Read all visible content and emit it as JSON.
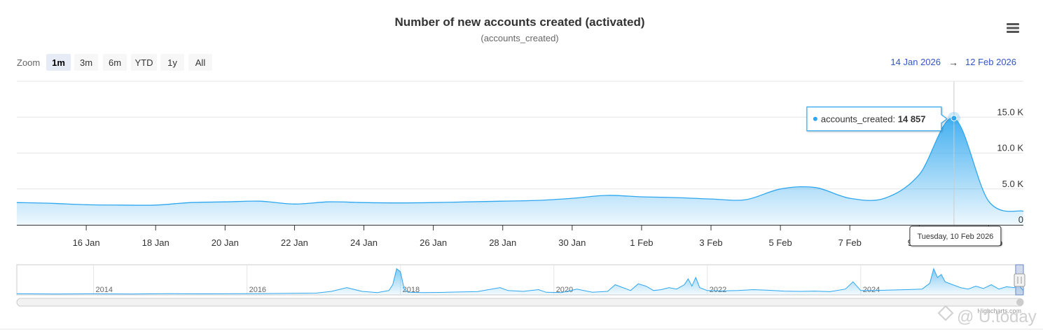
{
  "chart_data": {
    "type": "area",
    "title": "Number of new accounts created (activated)",
    "subtitle": "(accounts_created)",
    "series": [
      {
        "name": "accounts_created",
        "x": [
          "2026-01-14",
          "2026-01-15",
          "2026-01-16",
          "2026-01-17",
          "2026-01-18",
          "2026-01-19",
          "2026-01-20",
          "2026-01-21",
          "2026-01-22",
          "2026-01-23",
          "2026-01-24",
          "2026-01-25",
          "2026-01-26",
          "2026-01-27",
          "2026-01-28",
          "2026-01-29",
          "2026-01-30",
          "2026-01-31",
          "2026-02-01",
          "2026-02-02",
          "2026-02-03",
          "2026-02-04",
          "2026-02-05",
          "2026-02-06",
          "2026-02-07",
          "2026-02-08",
          "2026-02-09",
          "2026-02-10",
          "2026-02-11",
          "2026-02-12"
        ],
        "values": [
          3100,
          3000,
          2800,
          2750,
          2750,
          3100,
          3200,
          3300,
          2900,
          3200,
          3100,
          3050,
          3100,
          3200,
          3300,
          3400,
          3700,
          4100,
          3900,
          3800,
          3600,
          3500,
          5000,
          5200,
          3700,
          3700,
          7000,
          14857,
          3300,
          1900
        ]
      }
    ],
    "ylim": [
      0,
      20000
    ],
    "yticks": [
      "0",
      "5.0 K",
      "10.0 K",
      "15.0 K"
    ],
    "ytick_values": [
      0,
      5000,
      10000,
      15000
    ],
    "xticks": [
      "16 Jan",
      "18 Jan",
      "20 Jan",
      "22 Jan",
      "24 Jan",
      "26 Jan",
      "28 Jan",
      "30 Jan",
      "1 Feb",
      "3 Feb",
      "5 Feb",
      "7 Feb",
      "9 Feb",
      "11 Feb"
    ],
    "xtick_dates": [
      "2026-01-16",
      "2026-01-18",
      "2026-01-20",
      "2026-01-22",
      "2026-01-24",
      "2026-01-26",
      "2026-01-28",
      "2026-01-30",
      "2026-02-01",
      "2026-02-03",
      "2026-02-05",
      "2026-02-07",
      "2026-02-09",
      "2026-02-11"
    ],
    "xrange": [
      "2026-01-14",
      "2026-02-12"
    ],
    "grid": true,
    "legend": "none",
    "color": "#2fa7ef",
    "tooltip": {
      "label": "accounts_created:",
      "value": "14 857",
      "date_label": "Tuesday, 10 Feb 2026",
      "date": "2026-02-10",
      "y": 14857
    },
    "navigator": {
      "years": [
        "2014",
        "2016",
        "2018",
        "2020",
        "2022",
        "2024"
      ],
      "year_starts": [
        2014,
        2016,
        2018,
        2020,
        2022,
        2024
      ],
      "range": [
        2013.0,
        2026.12
      ],
      "x": [
        2013.0,
        2013.5,
        2014.0,
        2014.5,
        2015.0,
        2015.5,
        2016.0,
        2016.5,
        2016.9,
        2017.1,
        2017.3,
        2017.5,
        2017.7,
        2017.85,
        2017.9,
        2017.95,
        2018.0,
        2018.05,
        2018.1,
        2018.3,
        2018.6,
        2018.8,
        2019.0,
        2019.3,
        2019.4,
        2019.6,
        2019.8,
        2019.9,
        2020.1,
        2020.3,
        2020.5,
        2020.7,
        2020.8,
        2020.9,
        2021.0,
        2021.1,
        2021.2,
        2021.3,
        2021.4,
        2021.5,
        2021.6,
        2021.7,
        2021.75,
        2021.8,
        2021.85,
        2021.9,
        2022.0,
        2022.2,
        2022.4,
        2022.6,
        2022.8,
        2023.0,
        2023.2,
        2023.4,
        2023.6,
        2023.8,
        2023.9,
        2024.0,
        2024.3,
        2024.6,
        2024.8,
        2024.9,
        2024.95,
        2025.0,
        2025.05,
        2025.1,
        2025.2,
        2025.3,
        2025.4,
        2025.5,
        2025.6,
        2025.7,
        2025.8,
        2025.9,
        2026.0,
        2026.05,
        2026.1,
        2026.12
      ],
      "values": [
        400,
        300,
        350,
        300,
        400,
        350,
        400,
        500,
        600,
        1200,
        2500,
        1200,
        800,
        1500,
        3500,
        9000,
        8000,
        2000,
        900,
        800,
        900,
        1000,
        1100,
        2500,
        1500,
        1200,
        1800,
        900,
        800,
        2000,
        900,
        1200,
        3500,
        2500,
        1500,
        3800,
        3000,
        1500,
        1800,
        2500,
        2000,
        3500,
        5500,
        3000,
        6000,
        2500,
        1500,
        1400,
        1500,
        1800,
        1600,
        1300,
        1200,
        1300,
        1100,
        2000,
        4500,
        1500,
        1600,
        1800,
        2000,
        4000,
        9000,
        6000,
        7000,
        4500,
        3500,
        2500,
        2000,
        3000,
        2200,
        3500,
        2000,
        2800,
        2500,
        3800,
        2000,
        1500
      ]
    }
  },
  "ui": {
    "zoom_label": "Zoom",
    "zoom_buttons": [
      "1m",
      "3m",
      "6m",
      "YTD",
      "1y",
      "All"
    ],
    "zoom_active": "1m",
    "range_from": "14 Jan 2026",
    "range_arrow": "→",
    "range_to": "12 Feb 2026",
    "menu_icon": "hamburger-menu-icon",
    "credits": "Highcharts.com",
    "watermark": "@ U.today"
  }
}
